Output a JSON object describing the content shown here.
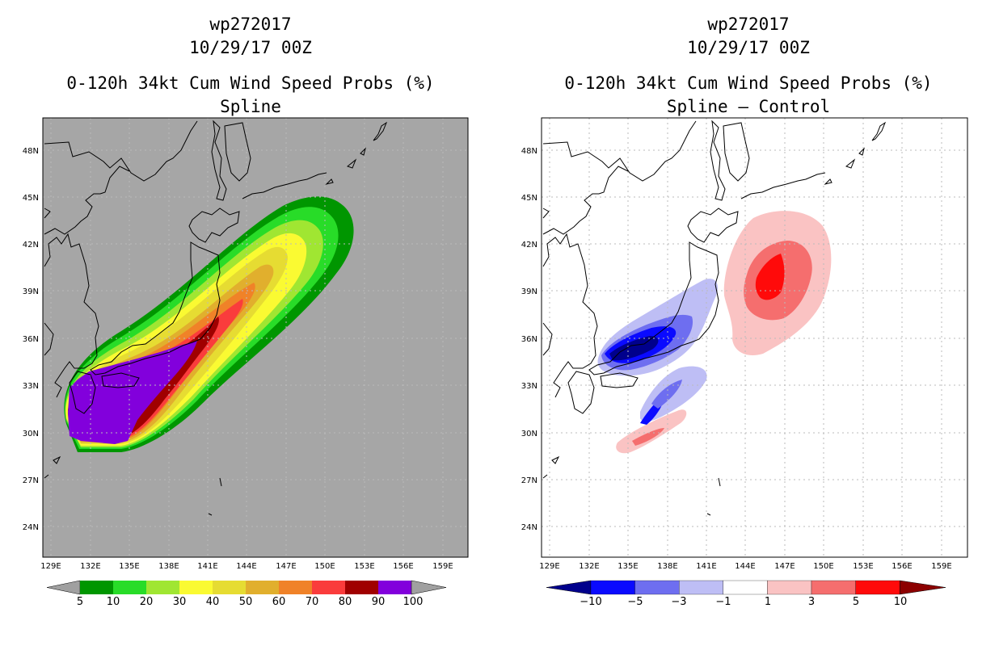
{
  "left_panel": {
    "storm_id": "wp272017",
    "datetime": "10/29/17 00Z",
    "product": "0-120h 34kt Cum Wind Speed Probs (%)",
    "subtitle": "Spline",
    "colorbar": {
      "labels": [
        "5",
        "10",
        "20",
        "30",
        "40",
        "50",
        "60",
        "70",
        "80",
        "90",
        "100"
      ],
      "colors": [
        "#a0a0a0",
        "#009600",
        "#28dc28",
        "#a0e632",
        "#fafa32",
        "#e6dc32",
        "#e1af2d",
        "#f08228",
        "#fa3c3c",
        "#a00000",
        "#8200dc",
        "#a0a0a0"
      ],
      "background": "#a6a6a6"
    }
  },
  "right_panel": {
    "storm_id": "wp272017",
    "datetime": "10/29/17 00Z",
    "product": "0-120h 34kt Cum Wind Speed Probs (%)",
    "subtitle": "Spline – Control",
    "colorbar": {
      "labels": [
        "−10",
        "−5",
        "−3",
        "−1",
        "1",
        "3",
        "5",
        "10"
      ],
      "colors": [
        "#00008c",
        "#0a0aff",
        "#6e6ef0",
        "#bebef5",
        "#ffffff",
        "#fac3c3",
        "#f56e6e",
        "#ff0a0a",
        "#8c0000"
      ]
    }
  },
  "axes": {
    "lat_labels": [
      "48N",
      "45N",
      "42N",
      "39N",
      "36N",
      "33N",
      "30N",
      "27N",
      "24N"
    ],
    "lon_labels": [
      "129E",
      "132E",
      "135E",
      "138E",
      "141E",
      "144E",
      "147E",
      "150E",
      "153E",
      "156E",
      "159E"
    ]
  }
}
